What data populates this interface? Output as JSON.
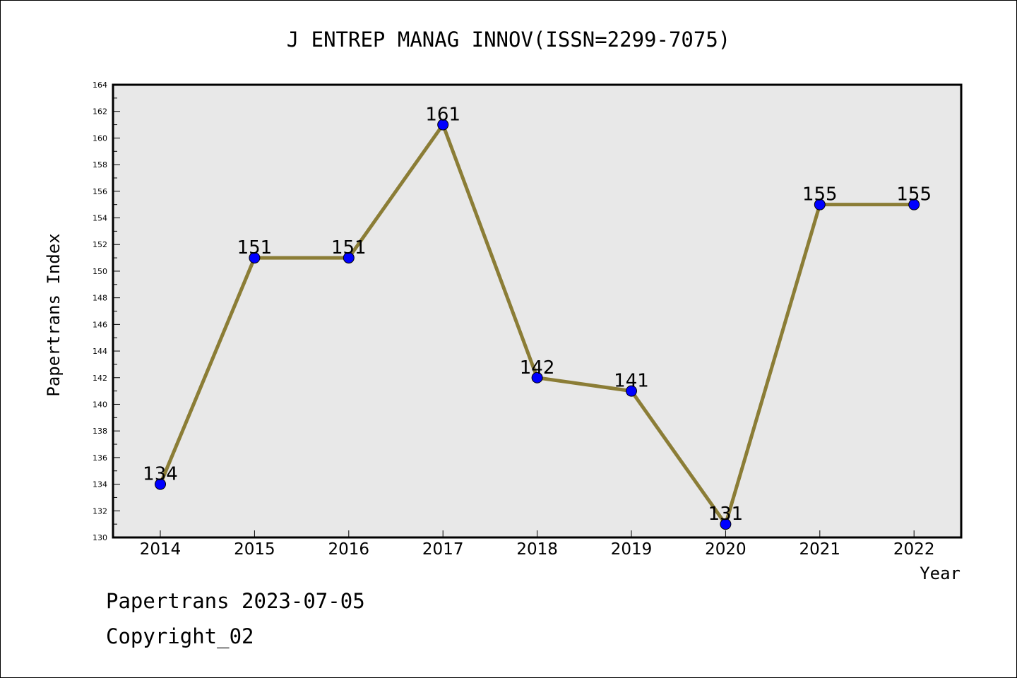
{
  "chart_data": {
    "type": "line",
    "title": "J ENTREP MANAG INNOV(ISSN=2299-7075)",
    "xlabel": "Year",
    "ylabel": "Papertrans Index",
    "categories": [
      "2014",
      "2015",
      "2016",
      "2017",
      "2018",
      "2019",
      "2020",
      "2021",
      "2022"
    ],
    "series": [
      {
        "values": [
          134,
          151,
          151,
          161,
          142,
          141,
          131,
          155,
          155
        ]
      }
    ],
    "data_labels": [
      "134",
      "151",
      "151",
      "161",
      "142",
      "141",
      "131",
      "155",
      "155"
    ],
    "ylim": [
      130,
      164
    ],
    "y_ticks": [
      "130",
      "132",
      "134",
      "136",
      "138",
      "140",
      "142",
      "144",
      "146",
      "148",
      "150",
      "152",
      "154",
      "156",
      "158",
      "160",
      "162",
      "164"
    ],
    "grid": false,
    "legend": "none",
    "colors": {
      "line": "#8b7d36",
      "marker": "#0000ff",
      "plot_bg": "#e8e8e8"
    }
  },
  "footer": {
    "stamp": "Papertrans 2023-07-05",
    "copyright": "Copyright_02"
  }
}
